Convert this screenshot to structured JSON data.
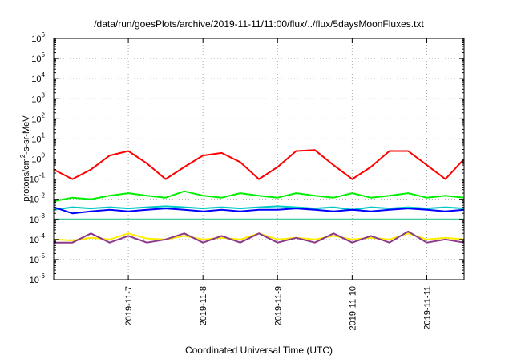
{
  "chart_data": {
    "type": "line",
    "title": "/data/run/goesPlots/archive/2019-11-11/11:00/flux/../flux/5daysMoonFluxes.txt",
    "xlabel": "Coordinated Universal Time (UTC)",
    "ylabel": {
      "pre": "protons/cm",
      "sup": "2",
      "post": "-s-sr-MeV"
    },
    "y_scale": "log",
    "ylim_exp": [
      -6,
      6
    ],
    "y_ticks": [
      {
        "base": "10",
        "exp": "-6"
      },
      {
        "base": "10",
        "exp": "-5"
      },
      {
        "base": "10",
        "exp": "-4"
      },
      {
        "base": "10",
        "exp": "-3"
      },
      {
        "base": "10",
        "exp": "-2"
      },
      {
        "base": "10",
        "exp": "-1"
      },
      {
        "base": "10",
        "exp": "0"
      },
      {
        "base": "10",
        "exp": "1"
      },
      {
        "base": "10",
        "exp": "2"
      },
      {
        "base": "10",
        "exp": "3"
      },
      {
        "base": "10",
        "exp": "4"
      },
      {
        "base": "10",
        "exp": "5"
      },
      {
        "base": "10",
        "exp": "6"
      }
    ],
    "x_range": [
      "2019-11-06T00:00",
      "2019-11-11T12:00"
    ],
    "x_ticks": [
      "2019-11-7",
      "2019-11-8",
      "2019-11-9",
      "2019-11-10",
      "2019-11-11"
    ],
    "x_tick_dates": [
      "2019-11-07",
      "2019-11-08",
      "2019-11-09",
      "2019-11-10",
      "2019-11-11"
    ],
    "grid": true,
    "x": [
      "11-06 00:00",
      "11-06 06:00",
      "11-06 12:00",
      "11-06 18:00",
      "11-07 00:00",
      "11-07 06:00",
      "11-07 12:00",
      "11-07 18:00",
      "11-08 00:00",
      "11-08 06:00",
      "11-08 12:00",
      "11-08 18:00",
      "11-09 00:00",
      "11-09 06:00",
      "11-09 12:00",
      "11-09 18:00",
      "11-10 00:00",
      "11-10 06:00",
      "11-10 12:00",
      "11-10 18:00",
      "11-11 00:00",
      "11-11 06:00",
      "11-11 12:00"
    ],
    "series": [
      {
        "color": "#ff0000",
        "values": [
          0.3,
          0.1,
          0.3,
          1.5,
          2.5,
          0.6,
          0.1,
          0.4,
          1.5,
          2.0,
          0.7,
          0.1,
          0.4,
          2.5,
          2.8,
          0.5,
          0.1,
          0.4,
          2.5,
          2.5,
          0.5,
          0.1,
          1.0
        ]
      },
      {
        "color": "#00ee00",
        "values": [
          0.008,
          0.012,
          0.01,
          0.015,
          0.02,
          0.015,
          0.012,
          0.025,
          0.015,
          0.012,
          0.02,
          0.015,
          0.012,
          0.02,
          0.015,
          0.012,
          0.02,
          0.012,
          0.015,
          0.02,
          0.012,
          0.015,
          0.012
        ]
      },
      {
        "color": "#00c8c8",
        "values": [
          0.003,
          0.004,
          0.0035,
          0.004,
          0.0035,
          0.004,
          0.0045,
          0.004,
          0.0035,
          0.004,
          0.0035,
          0.004,
          0.0045,
          0.004,
          0.0035,
          0.004,
          0.003,
          0.004,
          0.0035,
          0.004,
          0.0035,
          0.004,
          0.0035
        ]
      },
      {
        "color": "#40c8a0",
        "values": [
          0.001,
          0.001,
          0.001,
          0.001,
          0.001,
          0.001,
          0.001,
          0.001,
          0.001,
          0.001,
          0.001,
          0.001,
          0.001,
          0.001,
          0.001,
          0.001,
          0.001,
          0.001,
          0.001,
          0.001,
          0.001,
          0.001,
          0.001
        ]
      },
      {
        "color": "#0000ff",
        "values": [
          0.004,
          0.002,
          0.0025,
          0.003,
          0.0025,
          0.003,
          0.0035,
          0.003,
          0.0025,
          0.003,
          0.0025,
          0.003,
          0.003,
          0.0035,
          0.003,
          0.0025,
          0.003,
          0.0025,
          0.003,
          0.0035,
          0.003,
          0.0025,
          0.003
        ]
      },
      {
        "color": "#ffee00",
        "values": [
          0.0001,
          9e-05,
          0.00012,
          0.0001,
          0.0002,
          0.00011,
          0.0001,
          0.00015,
          0.0001,
          0.00012,
          0.0001,
          0.0002,
          0.0001,
          0.00012,
          0.0001,
          0.00015,
          0.0001,
          0.00012,
          0.0001,
          0.0002,
          0.0001,
          0.00012,
          0.0001
        ]
      },
      {
        "color": "#8b3a8b",
        "values": [
          7e-05,
          7e-05,
          0.0002,
          7e-05,
          0.00015,
          7e-05,
          0.0001,
          0.0002,
          7e-05,
          0.00015,
          7e-05,
          0.0002,
          7e-05,
          0.00012,
          7e-05,
          0.0002,
          7e-05,
          0.00015,
          7e-05,
          0.00025,
          7e-05,
          0.0001,
          7e-05
        ]
      }
    ]
  }
}
